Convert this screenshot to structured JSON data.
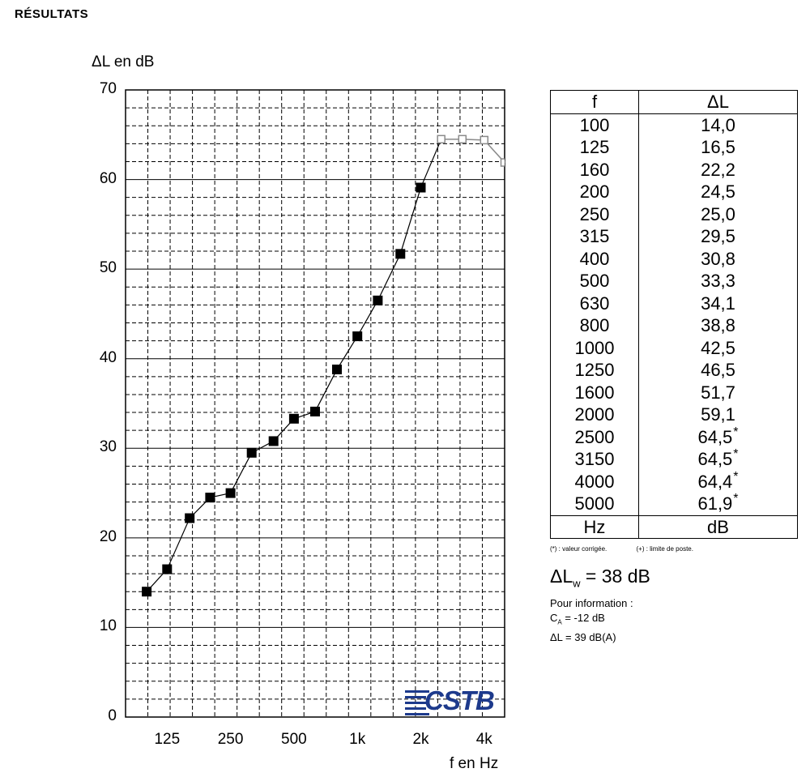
{
  "page": {
    "section_title": "RÉSULTATS"
  },
  "chart_data": {
    "type": "line",
    "ylabel": "ΔL en dB",
    "xlabel": "f en Hz",
    "scale_x": "log",
    "ylim": [
      0,
      70
    ],
    "ytick_labels": [
      "0",
      "10",
      "20",
      "30",
      "40",
      "50",
      "60",
      "70"
    ],
    "xtick_labels": [
      "125",
      "250",
      "500",
      "1k",
      "2k",
      "4k"
    ],
    "grid": true,
    "series": [
      {
        "x": [
          100,
          125,
          160,
          200,
          250,
          315,
          400,
          500,
          630,
          800,
          1000,
          1250,
          1600,
          2000,
          2500,
          3150,
          4000,
          5000
        ],
        "values": [
          14.0,
          16.5,
          22.2,
          24.5,
          25.0,
          29.5,
          30.8,
          33.3,
          34.1,
          38.8,
          42.5,
          46.5,
          51.7,
          59.1,
          64.5,
          64.5,
          64.4,
          61.9
        ],
        "corrected_from": 2500,
        "color": "#000000",
        "corrected_color": "#8a8a8a"
      }
    ]
  },
  "logo": {
    "text": "CSTB",
    "color": "#1d3a8c"
  },
  "table": {
    "col_f": "f",
    "col_dl": "ΔL",
    "rows": [
      {
        "f": "100",
        "dl": "14,0",
        "mark": ""
      },
      {
        "f": "125",
        "dl": "16,5",
        "mark": ""
      },
      {
        "f": "160",
        "dl": "22,2",
        "mark": ""
      },
      {
        "f": "200",
        "dl": "24,5",
        "mark": ""
      },
      {
        "f": "250",
        "dl": "25,0",
        "mark": ""
      },
      {
        "f": "315",
        "dl": "29,5",
        "mark": ""
      },
      {
        "f": "400",
        "dl": "30,8",
        "mark": ""
      },
      {
        "f": "500",
        "dl": "33,3",
        "mark": ""
      },
      {
        "f": "630",
        "dl": "34,1",
        "mark": ""
      },
      {
        "f": "800",
        "dl": "38,8",
        "mark": ""
      },
      {
        "f": "1000",
        "dl": "42,5",
        "mark": ""
      },
      {
        "f": "1250",
        "dl": "46,5",
        "mark": ""
      },
      {
        "f": "1600",
        "dl": "51,7",
        "mark": ""
      },
      {
        "f": "2000",
        "dl": "59,1",
        "mark": ""
      },
      {
        "f": "2500",
        "dl": "64,5",
        "mark": "*"
      },
      {
        "f": "3150",
        "dl": "64,5",
        "mark": "*"
      },
      {
        "f": "4000",
        "dl": "64,4",
        "mark": "*"
      },
      {
        "f": "5000",
        "dl": "61,9",
        "mark": "*"
      }
    ],
    "unit_f": "Hz",
    "unit_dl": "dB"
  },
  "notes": {
    "corrected": "(*) : valeur corrigée.",
    "limit": "(+) : limite de poste."
  },
  "summary": {
    "lw_prefix": "ΔL",
    "lw_sub": "w",
    "lw_value": " = 38 dB",
    "info_title": "Pour information :",
    "ca_prefix": "C",
    "ca_sub": "A",
    "ca_value": " = -12 dB",
    "dla": "ΔL = 39 dB(A)"
  }
}
